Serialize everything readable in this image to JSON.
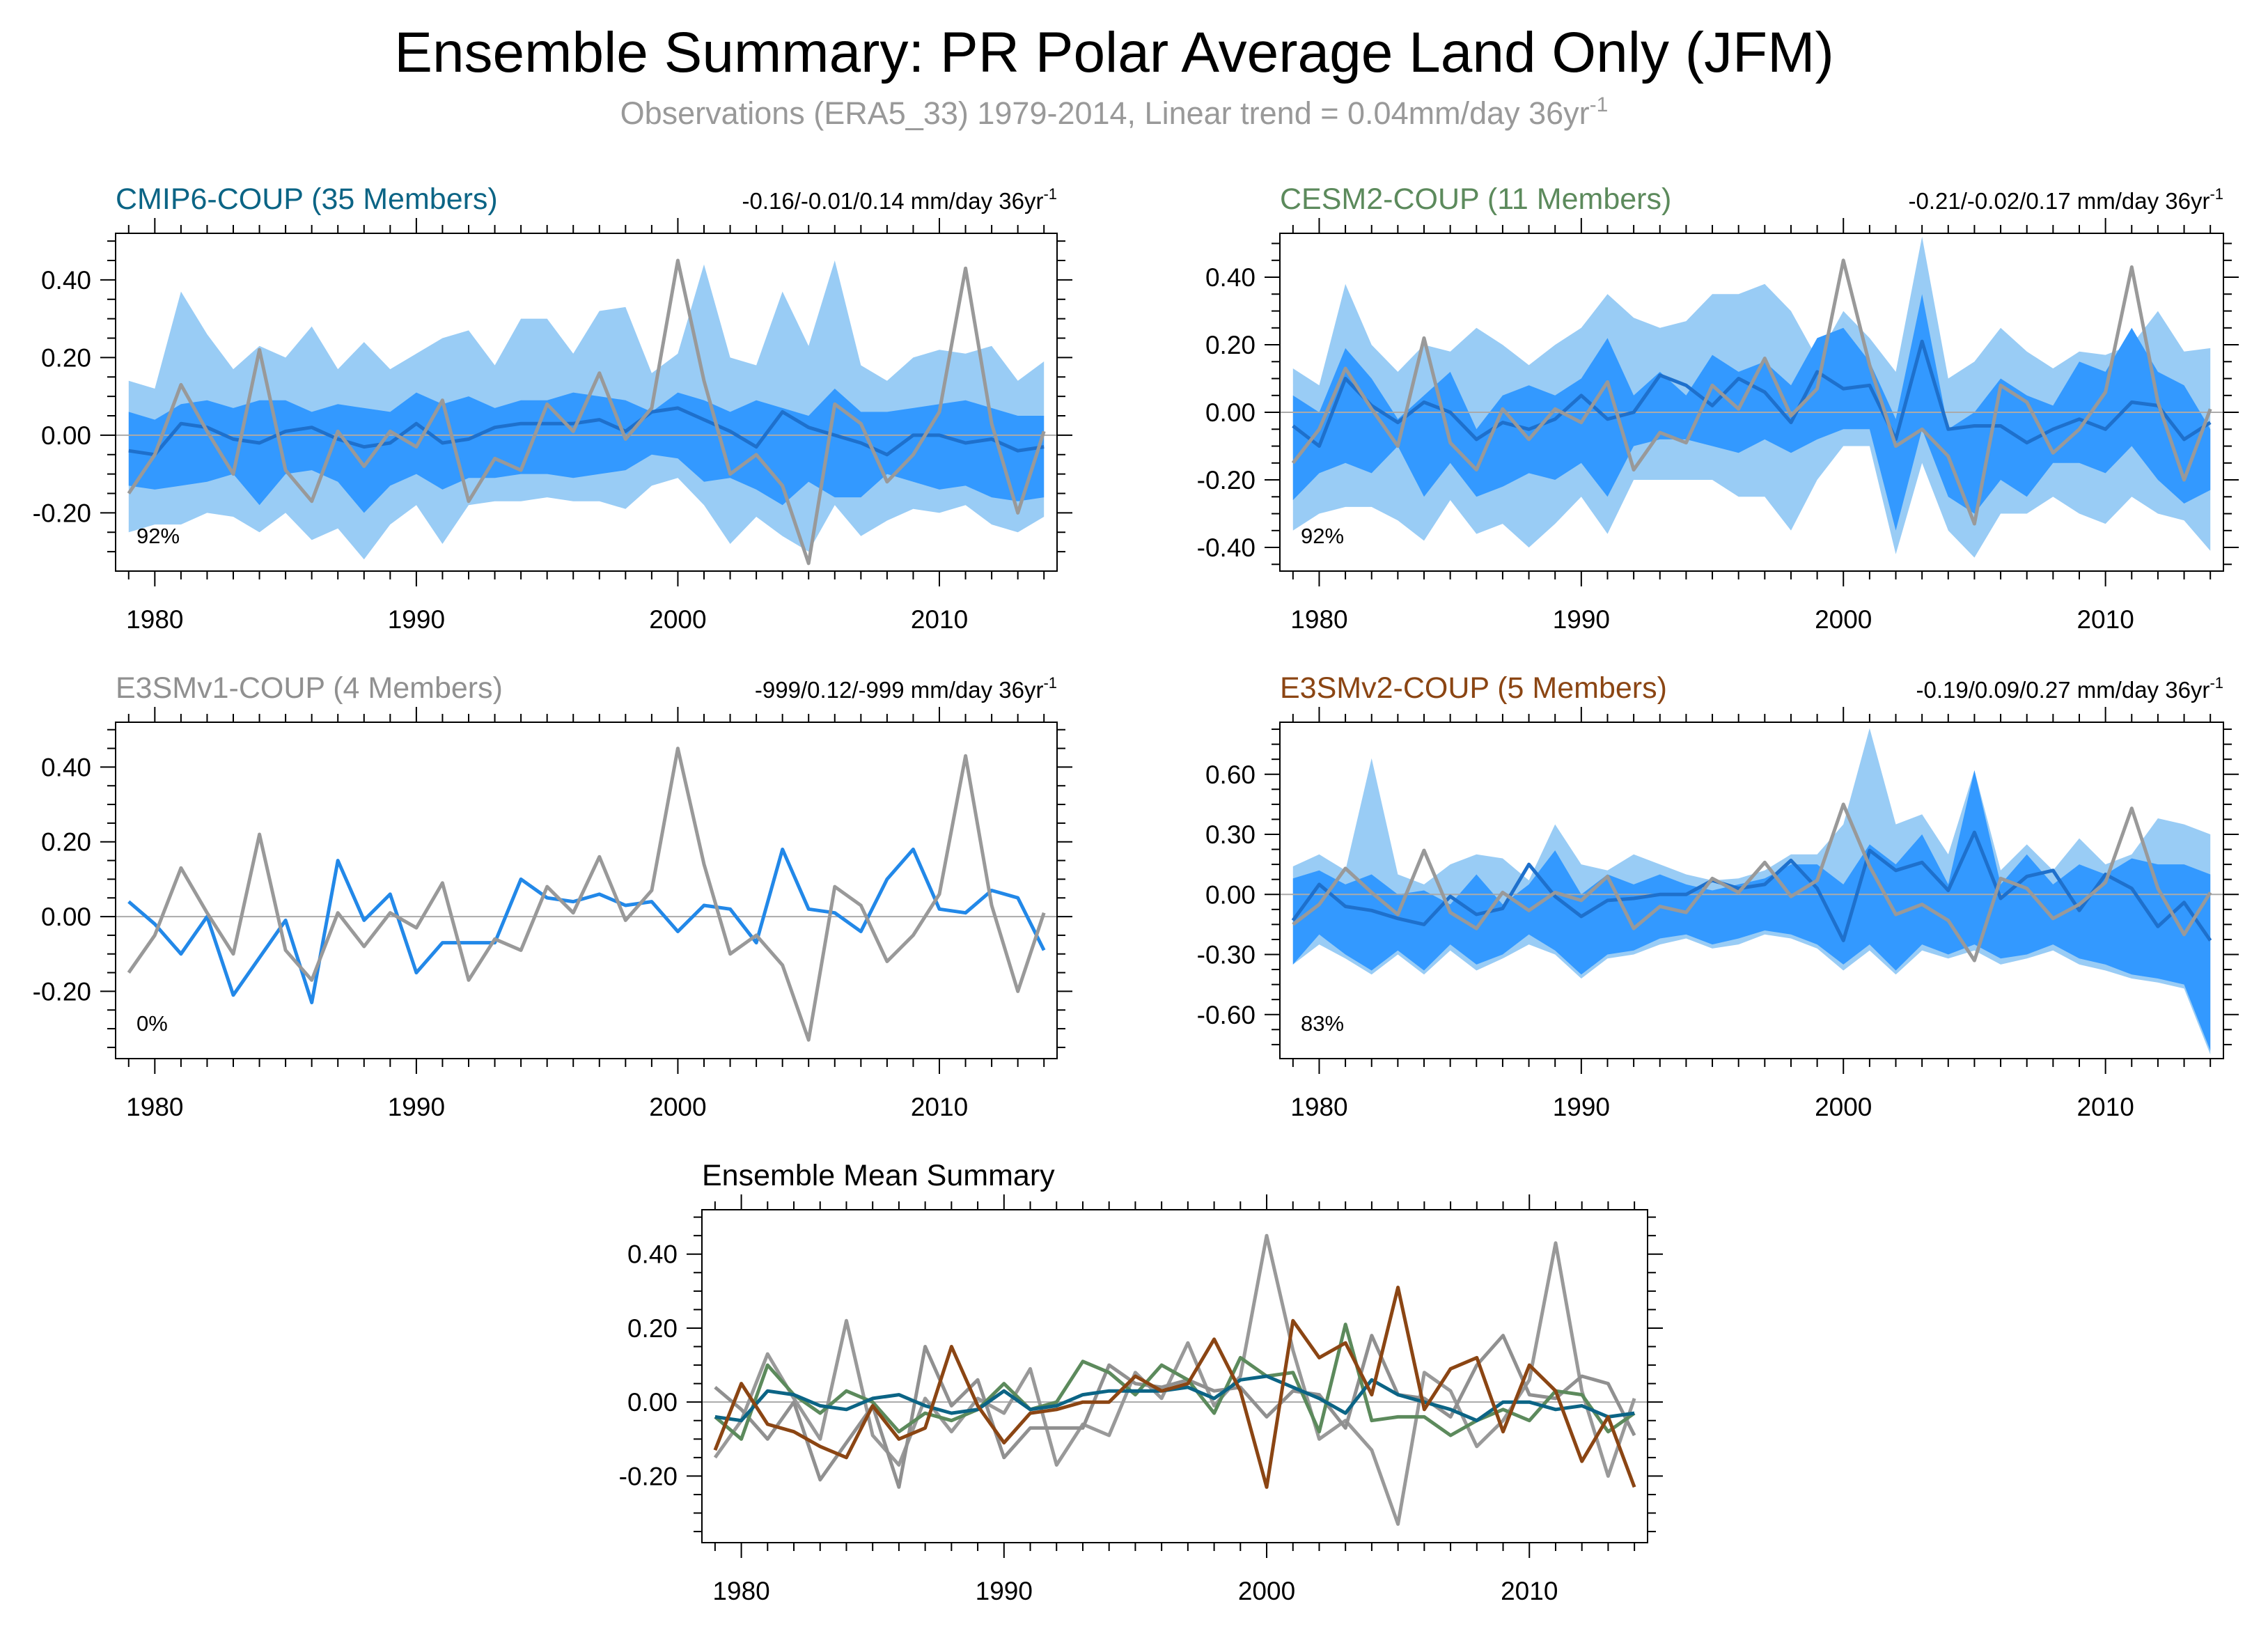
{
  "title": "Ensemble Summary: PR Polar Average Land Only (JFM)",
  "subtitle": {
    "main": "Observations (ERA5_33) 1979-2014, Linear trend = 0.04mm/day 36yr",
    "sup": "-1"
  },
  "colors": {
    "obs": "#999999",
    "band_outer": "#99ccf5",
    "band_inner": "#3399ff",
    "ens_mean": "#1e70cc",
    "single_member": "#2288e8",
    "cmip6": "#0b6485",
    "cesm2": "#5c8a5c",
    "e3smv1": "#909090",
    "e3smv2": "#8b4513",
    "zero_line": "#aaaaaa",
    "axis": "#000000"
  },
  "years": [
    1979,
    1980,
    1981,
    1982,
    1983,
    1984,
    1985,
    1986,
    1987,
    1988,
    1989,
    1990,
    1991,
    1992,
    1993,
    1994,
    1995,
    1996,
    1997,
    1998,
    1999,
    2000,
    2001,
    2002,
    2003,
    2004,
    2005,
    2006,
    2007,
    2008,
    2009,
    2010,
    2011,
    2012,
    2013,
    2014
  ],
  "observations": [
    -0.15,
    -0.05,
    0.13,
    0.01,
    -0.1,
    0.22,
    -0.09,
    -0.17,
    0.01,
    -0.08,
    0.01,
    -0.03,
    0.09,
    -0.17,
    -0.06,
    -0.09,
    0.08,
    0.01,
    0.16,
    -0.01,
    0.07,
    0.45,
    0.14,
    -0.1,
    -0.05,
    -0.13,
    -0.33,
    0.08,
    0.03,
    -0.12,
    -0.05,
    0.06,
    0.43,
    0.03,
    -0.2,
    0.01
  ],
  "chart_data": [
    {
      "type": "area",
      "panel": "cmip6",
      "title": "CMIP6-COUP (35 Members)",
      "trend_label": "-0.16/-0.01/0.14 mm/day 36yr",
      "trend_sup": "-1",
      "percent_label": "92%",
      "xlabel": "",
      "ylabel": "",
      "xlim": [
        1978.5,
        2014.5
      ],
      "ylim": [
        -0.35,
        0.52
      ],
      "yticks": [
        -0.2,
        0.0,
        0.2,
        0.4
      ],
      "yticklabels": [
        "-0.20",
        "0.00",
        "0.20",
        "0.40"
      ],
      "xticks": [
        1980,
        1990,
        2000,
        2010
      ],
      "xticklabels": [
        "1980",
        "1990",
        "2000",
        "2010"
      ],
      "series": {
        "outer_upper": [
          0.14,
          0.12,
          0.37,
          0.26,
          0.17,
          0.23,
          0.2,
          0.28,
          0.17,
          0.24,
          0.17,
          0.21,
          0.25,
          0.27,
          0.18,
          0.3,
          0.3,
          0.21,
          0.32,
          0.33,
          0.16,
          0.21,
          0.44,
          0.2,
          0.18,
          0.37,
          0.23,
          0.45,
          0.18,
          0.14,
          0.2,
          0.22,
          0.21,
          0.23,
          0.14,
          0.19
        ],
        "inner_upper": [
          0.06,
          0.04,
          0.08,
          0.09,
          0.07,
          0.09,
          0.09,
          0.06,
          0.08,
          0.07,
          0.06,
          0.11,
          0.08,
          0.1,
          0.07,
          0.09,
          0.09,
          0.11,
          0.1,
          0.09,
          0.06,
          0.11,
          0.09,
          0.06,
          0.09,
          0.07,
          0.05,
          0.12,
          0.06,
          0.06,
          0.07,
          0.08,
          0.09,
          0.07,
          0.05,
          0.05
        ],
        "mean": [
          -0.04,
          -0.05,
          0.03,
          0.02,
          -0.01,
          -0.02,
          0.01,
          0.02,
          -0.01,
          -0.03,
          -0.02,
          0.03,
          -0.02,
          -0.01,
          0.02,
          0.03,
          0.03,
          0.03,
          0.04,
          0.01,
          0.06,
          0.07,
          0.04,
          0.01,
          -0.03,
          0.06,
          0.02,
          0.0,
          -0.02,
          -0.05,
          0.0,
          0.0,
          -0.02,
          -0.01,
          -0.04,
          -0.03
        ],
        "inner_lower": [
          -0.13,
          -0.14,
          -0.13,
          -0.12,
          -0.1,
          -0.18,
          -0.1,
          -0.09,
          -0.12,
          -0.2,
          -0.13,
          -0.1,
          -0.14,
          -0.11,
          -0.11,
          -0.1,
          -0.1,
          -0.11,
          -0.1,
          -0.09,
          -0.05,
          -0.06,
          -0.12,
          -0.11,
          -0.14,
          -0.18,
          -0.12,
          -0.16,
          -0.16,
          -0.1,
          -0.12,
          -0.14,
          -0.13,
          -0.16,
          -0.17,
          -0.16
        ],
        "outer_lower": [
          -0.25,
          -0.23,
          -0.23,
          -0.2,
          -0.21,
          -0.25,
          -0.2,
          -0.27,
          -0.24,
          -0.32,
          -0.23,
          -0.18,
          -0.28,
          -0.18,
          -0.17,
          -0.17,
          -0.16,
          -0.17,
          -0.17,
          -0.19,
          -0.13,
          -0.11,
          -0.18,
          -0.28,
          -0.21,
          -0.26,
          -0.3,
          -0.18,
          -0.26,
          -0.22,
          -0.19,
          -0.2,
          -0.18,
          -0.23,
          -0.25,
          -0.21
        ],
        "observations": "observations"
      }
    },
    {
      "type": "area",
      "panel": "cesm2",
      "title": "CESM2-COUP (11 Members)",
      "trend_label": "-0.21/-0.02/0.17 mm/day 36yr",
      "trend_sup": "-1",
      "percent_label": "92%",
      "xlabel": "",
      "ylabel": "",
      "xlim": [
        1978.5,
        2014.5
      ],
      "ylim": [
        -0.47,
        0.53
      ],
      "yticks": [
        -0.4,
        -0.2,
        0.0,
        0.2,
        0.4
      ],
      "yticklabels": [
        "-0.40",
        "-0.20",
        "0.00",
        "0.20",
        "0.40"
      ],
      "xticks": [
        1980,
        1990,
        2000,
        2010
      ],
      "xticklabels": [
        "1980",
        "1990",
        "2000",
        "2010"
      ],
      "series": {
        "outer_upper": [
          0.13,
          0.08,
          0.38,
          0.2,
          0.12,
          0.2,
          0.18,
          0.25,
          0.2,
          0.14,
          0.2,
          0.25,
          0.35,
          0.28,
          0.25,
          0.27,
          0.35,
          0.35,
          0.38,
          0.3,
          0.16,
          0.3,
          0.22,
          0.12,
          0.52,
          0.1,
          0.15,
          0.25,
          0.18,
          0.13,
          0.18,
          0.17,
          0.2,
          0.3,
          0.18,
          0.19
        ],
        "inner_upper": [
          0.05,
          0.0,
          0.19,
          0.1,
          -0.02,
          0.05,
          0.12,
          -0.05,
          0.05,
          0.08,
          0.05,
          0.1,
          0.22,
          0.05,
          0.12,
          0.05,
          0.17,
          0.12,
          0.15,
          0.08,
          0.22,
          0.25,
          0.15,
          -0.02,
          0.35,
          -0.05,
          0.0,
          0.1,
          0.05,
          0.02,
          0.15,
          0.12,
          0.25,
          0.12,
          0.08,
          -0.05
        ],
        "mean": [
          -0.04,
          -0.1,
          0.1,
          0.02,
          -0.03,
          0.03,
          0.0,
          -0.08,
          -0.03,
          -0.05,
          -0.02,
          0.05,
          -0.02,
          0.0,
          0.11,
          0.08,
          0.02,
          0.1,
          0.06,
          -0.03,
          0.12,
          0.07,
          0.08,
          -0.08,
          0.21,
          -0.05,
          -0.04,
          -0.04,
          -0.09,
          -0.05,
          -0.02,
          -0.05,
          0.03,
          0.02,
          -0.08,
          -0.03
        ],
        "inner_lower": [
          -0.26,
          -0.18,
          -0.15,
          -0.18,
          -0.1,
          -0.25,
          -0.15,
          -0.25,
          -0.22,
          -0.18,
          -0.2,
          -0.15,
          -0.25,
          -0.1,
          -0.08,
          -0.08,
          -0.1,
          -0.12,
          -0.08,
          -0.12,
          -0.08,
          -0.05,
          -0.05,
          -0.35,
          -0.05,
          -0.25,
          -0.3,
          -0.2,
          -0.25,
          -0.15,
          -0.15,
          -0.18,
          -0.1,
          -0.2,
          -0.27,
          -0.23
        ],
        "outer_lower": [
          -0.35,
          -0.3,
          -0.28,
          -0.28,
          -0.32,
          -0.38,
          -0.26,
          -0.36,
          -0.33,
          -0.4,
          -0.33,
          -0.25,
          -0.36,
          -0.2,
          -0.2,
          -0.2,
          -0.2,
          -0.25,
          -0.25,
          -0.35,
          -0.2,
          -0.1,
          -0.1,
          -0.42,
          -0.15,
          -0.35,
          -0.43,
          -0.3,
          -0.3,
          -0.25,
          -0.3,
          -0.33,
          -0.25,
          -0.3,
          -0.32,
          -0.41
        ],
        "observations": "observations"
      }
    },
    {
      "type": "line",
      "panel": "e3smv1",
      "title": "E3SMv1-COUP (4 Members)",
      "trend_label": "-999/0.12/-999 mm/day 36yr",
      "trend_sup": "-1",
      "percent_label": "0%",
      "xlabel": "",
      "ylabel": "",
      "xlim": [
        1978.5,
        2014.5
      ],
      "ylim": [
        -0.38,
        0.52
      ],
      "yticks": [
        -0.2,
        0.0,
        0.2,
        0.4
      ],
      "yticklabels": [
        "-0.20",
        "0.00",
        "0.20",
        "0.40"
      ],
      "xticks": [
        1980,
        1990,
        2000,
        2010
      ],
      "xticklabels": [
        "1980",
        "1990",
        "2000",
        "2010"
      ],
      "series": {
        "mean": [
          0.04,
          -0.02,
          -0.1,
          0.0,
          -0.21,
          -0.11,
          -0.01,
          -0.23,
          0.15,
          -0.01,
          0.06,
          -0.15,
          -0.07,
          -0.07,
          -0.07,
          0.1,
          0.05,
          0.04,
          0.06,
          0.03,
          0.04,
          -0.04,
          0.03,
          0.02,
          -0.07,
          0.18,
          0.02,
          0.01,
          -0.04,
          0.1,
          0.18,
          0.02,
          0.01,
          0.07,
          0.05,
          -0.09
        ],
        "observations": "observations"
      }
    },
    {
      "type": "area",
      "panel": "e3smv2",
      "title": "E3SMv2-COUP (5 Members)",
      "trend_label": "-0.19/0.09/0.27 mm/day 36yr",
      "trend_sup": "-1",
      "percent_label": "83%",
      "xlabel": "",
      "ylabel": "",
      "xlim": [
        1978.5,
        2014.5
      ],
      "ylim": [
        -0.82,
        0.86
      ],
      "yticks": [
        -0.6,
        -0.3,
        0.0,
        0.3,
        0.6
      ],
      "yticklabels": [
        "-0.60",
        "-0.30",
        "0.00",
        "0.30",
        "0.60"
      ],
      "xticks": [
        1980,
        1990,
        2000,
        2010
      ],
      "xticklabels": [
        "1980",
        "1990",
        "2000",
        "2010"
      ],
      "series": {
        "outer_upper": [
          0.14,
          0.2,
          0.12,
          0.68,
          0.1,
          0.05,
          0.15,
          0.2,
          0.18,
          0.07,
          0.35,
          0.15,
          0.12,
          0.2,
          0.15,
          0.1,
          0.07,
          0.08,
          0.12,
          0.2,
          0.2,
          0.35,
          0.83,
          0.35,
          0.4,
          0.2,
          0.62,
          0.12,
          0.25,
          0.12,
          0.28,
          0.15,
          0.2,
          0.38,
          0.35,
          0.3
        ],
        "inner_upper": [
          0.08,
          0.12,
          0.05,
          0.1,
          0.0,
          0.02,
          -0.05,
          0.1,
          -0.05,
          0.05,
          0.22,
          0.0,
          0.1,
          0.05,
          0.1,
          0.05,
          0.02,
          0.05,
          0.08,
          0.15,
          0.15,
          0.05,
          0.25,
          0.15,
          0.3,
          0.05,
          0.62,
          0.05,
          0.2,
          0.05,
          0.15,
          0.1,
          0.18,
          0.15,
          0.15,
          0.1
        ],
        "mean": [
          -0.13,
          0.05,
          -0.06,
          -0.08,
          -0.12,
          -0.15,
          -0.01,
          -0.1,
          -0.07,
          0.15,
          -0.01,
          -0.11,
          -0.03,
          -0.02,
          0.0,
          0.0,
          0.07,
          0.03,
          0.05,
          0.17,
          0.03,
          -0.23,
          0.22,
          0.12,
          0.16,
          0.02,
          0.31,
          -0.02,
          0.09,
          0.12,
          -0.08,
          0.1,
          0.03,
          -0.16,
          -0.04,
          -0.23
        ],
        "inner_lower": [
          -0.35,
          -0.2,
          -0.3,
          -0.38,
          -0.28,
          -0.38,
          -0.25,
          -0.35,
          -0.3,
          -0.2,
          -0.28,
          -0.4,
          -0.3,
          -0.28,
          -0.22,
          -0.2,
          -0.25,
          -0.22,
          -0.18,
          -0.2,
          -0.25,
          -0.35,
          -0.25,
          -0.38,
          -0.25,
          -0.3,
          -0.25,
          -0.32,
          -0.3,
          -0.25,
          -0.32,
          -0.35,
          -0.4,
          -0.42,
          -0.45,
          -0.78
        ],
        "outer_lower": [
          -0.35,
          -0.25,
          -0.32,
          -0.4,
          -0.3,
          -0.4,
          -0.28,
          -0.38,
          -0.32,
          -0.25,
          -0.3,
          -0.42,
          -0.32,
          -0.3,
          -0.25,
          -0.22,
          -0.27,
          -0.25,
          -0.2,
          -0.22,
          -0.27,
          -0.38,
          -0.28,
          -0.4,
          -0.28,
          -0.32,
          -0.28,
          -0.35,
          -0.32,
          -0.28,
          -0.35,
          -0.38,
          -0.42,
          -0.44,
          -0.47,
          -0.8
        ],
        "observations": "observations"
      }
    },
    {
      "type": "line",
      "panel": "summary",
      "title": "Ensemble Mean Summary",
      "xlabel": "",
      "ylabel": "",
      "xlim": [
        1978.5,
        2014.5
      ],
      "ylim": [
        -0.38,
        0.52
      ],
      "yticks": [
        -0.2,
        0.0,
        0.2,
        0.4
      ],
      "yticklabels": [
        "-0.20",
        "0.00",
        "0.20",
        "0.40"
      ],
      "xticks": [
        1980,
        1990,
        2000,
        2010
      ],
      "xticklabels": [
        "1980",
        "1990",
        "2000",
        "2010"
      ],
      "series": [
        {
          "name": "Observations",
          "color_key": "obs",
          "values": "observations"
        },
        {
          "name": "E3SMv1-COUP",
          "color_key": "e3smv1",
          "values": [
            0.04,
            -0.02,
            -0.1,
            0.0,
            -0.21,
            -0.11,
            -0.01,
            -0.23,
            0.15,
            -0.01,
            0.06,
            -0.15,
            -0.07,
            -0.07,
            -0.07,
            0.1,
            0.05,
            0.04,
            0.06,
            0.03,
            0.04,
            -0.04,
            0.03,
            0.02,
            -0.07,
            0.18,
            0.02,
            0.01,
            -0.04,
            0.1,
            0.18,
            0.02,
            0.01,
            0.07,
            0.05,
            -0.09
          ]
        },
        {
          "name": "CESM2-COUP",
          "color_key": "cesm2",
          "values": [
            -0.04,
            -0.1,
            0.1,
            0.02,
            -0.03,
            0.03,
            0.0,
            -0.08,
            -0.03,
            -0.05,
            -0.02,
            0.05,
            -0.02,
            0.0,
            0.11,
            0.08,
            0.02,
            0.1,
            0.06,
            -0.03,
            0.12,
            0.07,
            0.08,
            -0.08,
            0.21,
            -0.05,
            -0.04,
            -0.04,
            -0.09,
            -0.05,
            -0.02,
            -0.05,
            0.03,
            0.02,
            -0.08,
            -0.03
          ]
        },
        {
          "name": "CMIP6-COUP",
          "color_key": "cmip6",
          "values": [
            -0.04,
            -0.05,
            0.03,
            0.02,
            -0.01,
            -0.02,
            0.01,
            0.02,
            -0.01,
            -0.03,
            -0.02,
            0.03,
            -0.02,
            -0.01,
            0.02,
            0.03,
            0.03,
            0.03,
            0.04,
            0.01,
            0.06,
            0.07,
            0.04,
            0.01,
            -0.03,
            0.06,
            0.02,
            0.0,
            -0.02,
            -0.05,
            0.0,
            0.0,
            -0.02,
            -0.01,
            -0.04,
            -0.03
          ]
        },
        {
          "name": "E3SMv2-COUP",
          "color_key": "e3smv2",
          "values": [
            -0.13,
            0.05,
            -0.06,
            -0.08,
            -0.12,
            -0.15,
            -0.01,
            -0.1,
            -0.07,
            0.15,
            -0.01,
            -0.11,
            -0.03,
            -0.02,
            0.0,
            0.0,
            0.07,
            0.03,
            0.05,
            0.17,
            0.03,
            -0.23,
            0.22,
            0.12,
            0.16,
            0.02,
            0.31,
            -0.02,
            0.09,
            0.12,
            -0.08,
            0.1,
            0.03,
            -0.16,
            -0.04,
            -0.23
          ]
        }
      ]
    }
  ]
}
